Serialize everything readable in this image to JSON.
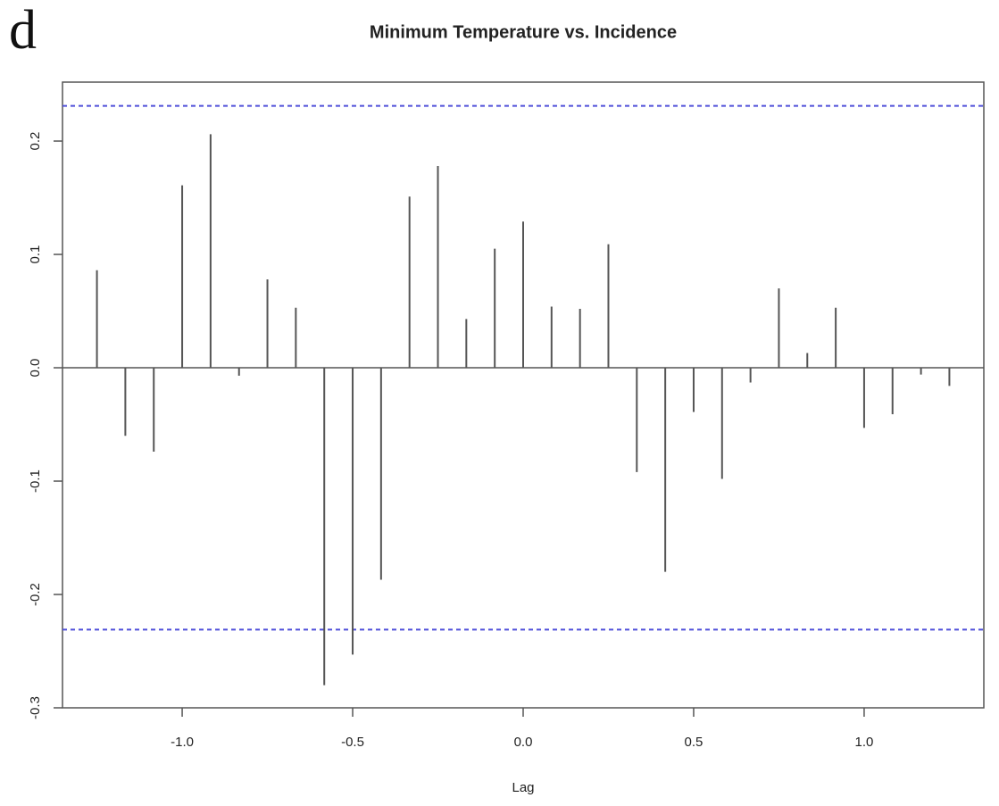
{
  "panel_label": "d",
  "chart_data": {
    "type": "stem",
    "title": "Minimum Temperature vs. Incidence",
    "x_label": "Lag",
    "x": [
      -1.25,
      -1.1667,
      -1.0833,
      -1,
      -0.9167,
      -0.8333,
      -0.75,
      -0.6667,
      -0.5833,
      -0.5,
      -0.4167,
      -0.3333,
      -0.25,
      -0.1667,
      -0.0833,
      0,
      0.0833,
      0.1667,
      0.25,
      0.3333,
      0.4167,
      0.5,
      0.5833,
      0.6667,
      0.75,
      0.8333,
      0.9167,
      1,
      1.0833,
      1.1667,
      1.25
    ],
    "values": [
      0.086,
      -0.06,
      -0.074,
      0.161,
      0.206,
      -0.007,
      0.078,
      0.053,
      -0.28,
      -0.253,
      -0.187,
      0.151,
      0.178,
      0.043,
      0.105,
      0.129,
      0.054,
      0.052,
      0.109,
      -0.092,
      -0.18,
      -0.039,
      -0.098,
      -0.013,
      0.07,
      0.013,
      0.053,
      -0.053,
      -0.041,
      -0.006,
      -0.016
    ],
    "color": "#555555",
    "conf_limits": [
      0.231,
      -0.231
    ],
    "conf_color": "#4f4fd9",
    "xlim": [
      -1.351,
      1.351
    ],
    "ylim": [
      -0.3,
      0.252
    ],
    "xticks": [
      {
        "value": -1,
        "label": "-1.0"
      },
      -0.5,
      {
        "value": 0,
        "label": "0.0"
      },
      0.5,
      {
        "value": 1,
        "label": "1.0"
      }
    ],
    "yticks": [
      -0.3,
      -0.2,
      -0.1,
      {
        "value": 0,
        "label": "0.0"
      },
      0.1,
      0.2
    ]
  }
}
